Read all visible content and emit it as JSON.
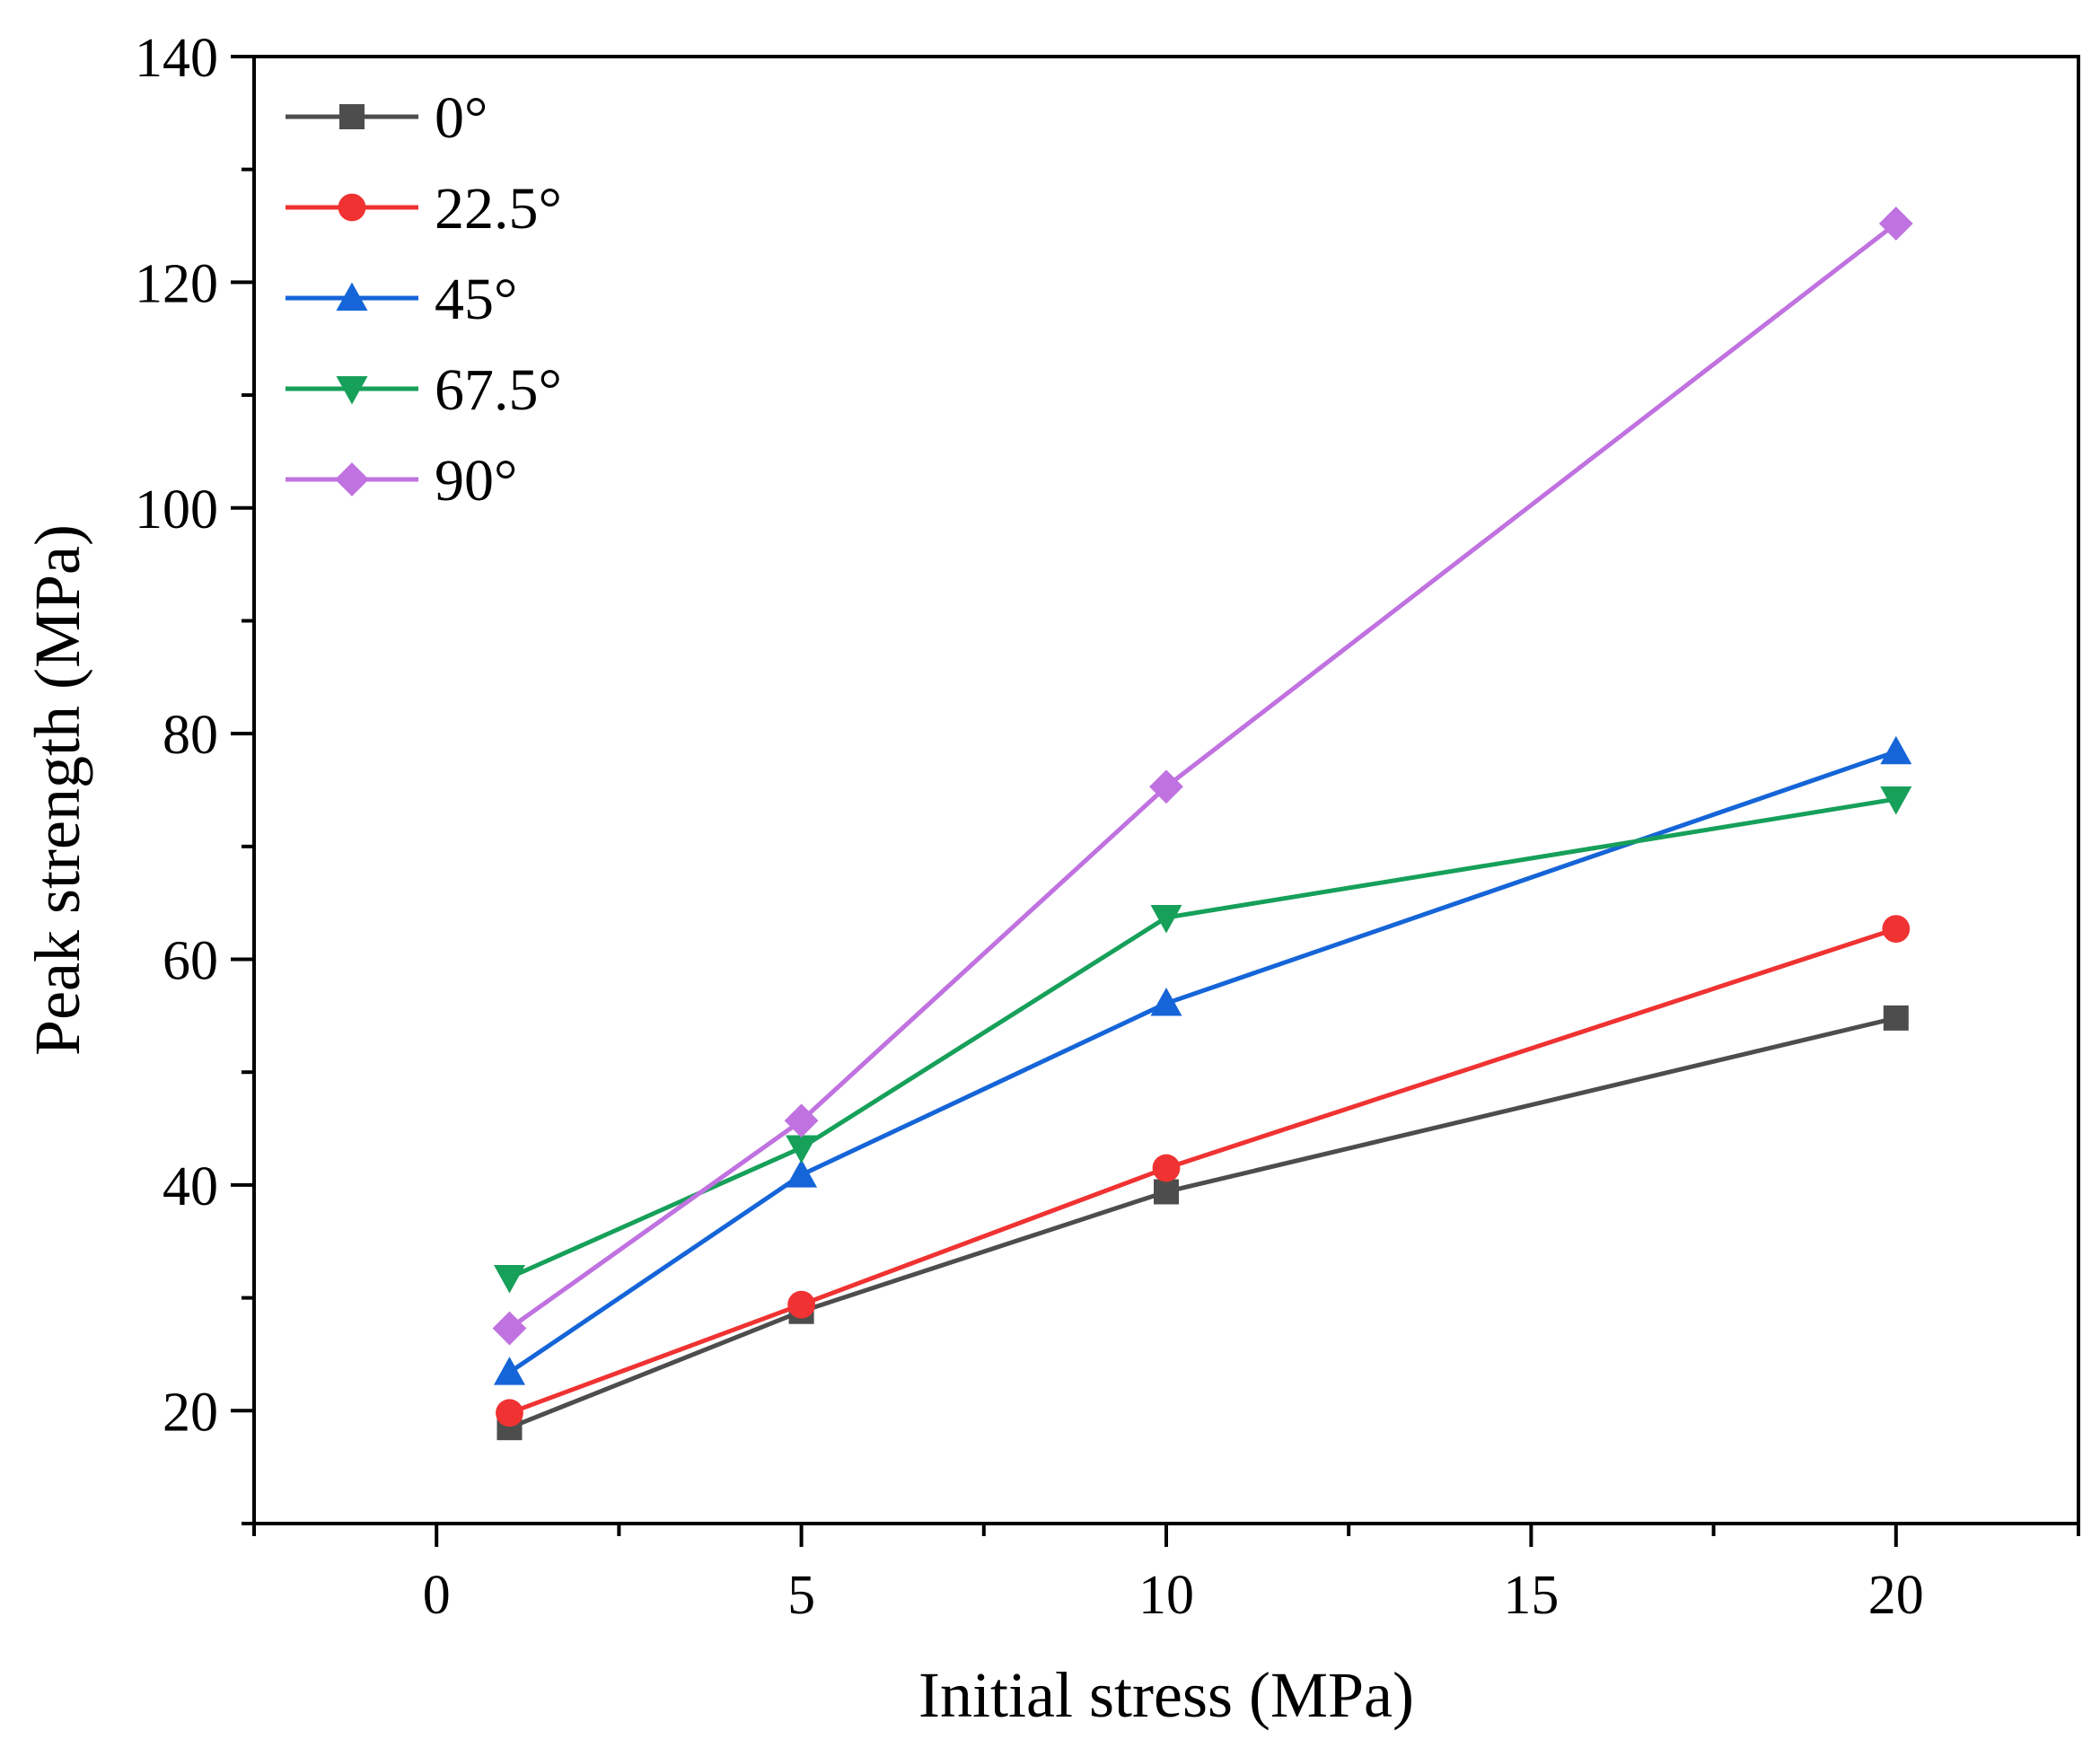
{
  "chart_data": {
    "type": "line",
    "title": "",
    "xlabel": "Initial stress (MPa)",
    "ylabel": "Peak strength (MPa)",
    "xlim": [
      -2.5,
      22.5
    ],
    "ylim": [
      10,
      140
    ],
    "x_ticks": [
      0,
      5,
      10,
      15,
      20
    ],
    "y_ticks": [
      20,
      40,
      60,
      80,
      100,
      120,
      140
    ],
    "x_tick_labels": [
      "0",
      "5",
      "10",
      "15",
      "20"
    ],
    "y_tick_labels": [
      "20",
      "40",
      "60",
      "80",
      "100",
      "120",
      "140"
    ],
    "x": [
      1,
      5,
      10,
      20
    ],
    "grid": false,
    "legend_position": "top-left",
    "series": [
      {
        "name": "0°",
        "values": [
          18.5,
          28.8,
          39.4,
          54.8
        ],
        "color": "#4d4d4d",
        "marker": "square"
      },
      {
        "name": "22.5°",
        "values": [
          19.8,
          29.4,
          41.5,
          62.7
        ],
        "color": "#f03232",
        "marker": "circle"
      },
      {
        "name": "45°",
        "values": [
          23.4,
          40.9,
          56.1,
          78.4
        ],
        "color": "#1565d8",
        "marker": "triangle-up"
      },
      {
        "name": "67.5°",
        "values": [
          31.8,
          43.3,
          63.7,
          74.2
        ],
        "color": "#16a05a",
        "marker": "triangle-down"
      },
      {
        "name": "90°",
        "values": [
          27.3,
          45.7,
          75.3,
          125.2
        ],
        "color": "#c072e0",
        "marker": "diamond"
      }
    ]
  }
}
